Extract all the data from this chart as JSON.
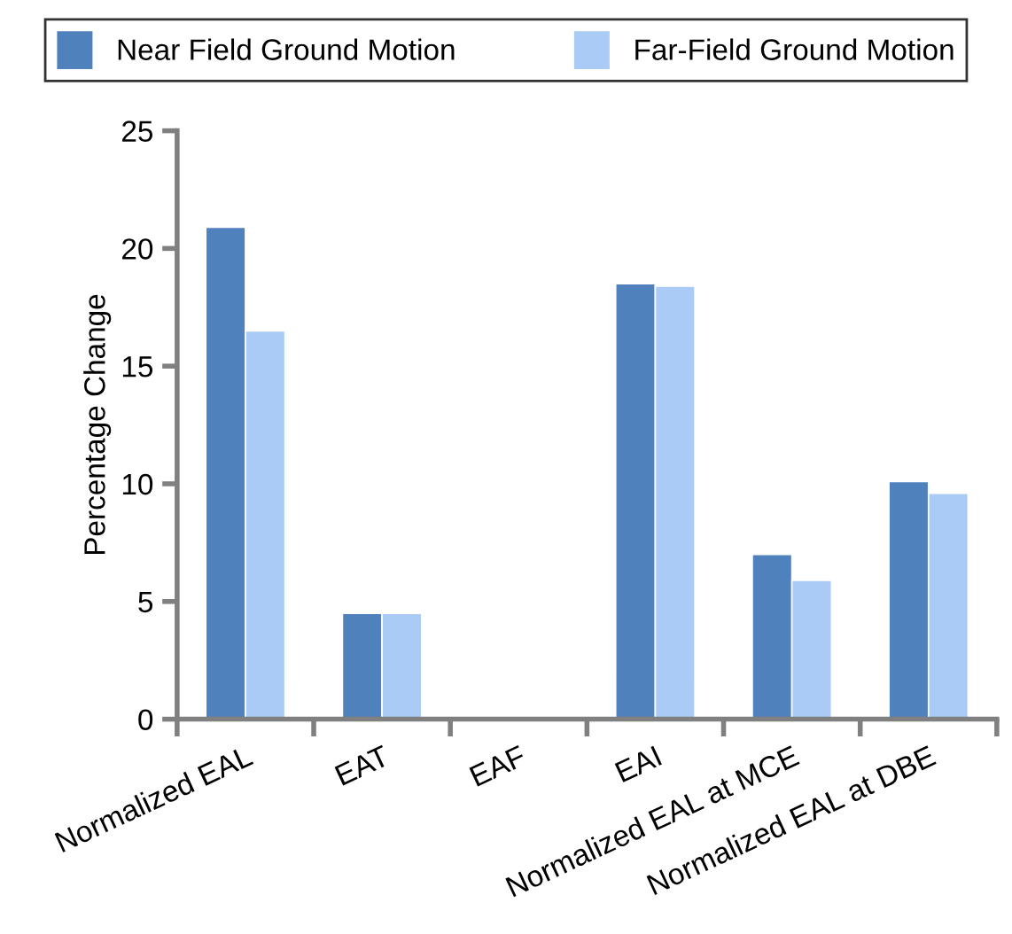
{
  "chart_data": {
    "type": "bar",
    "ylabel": "Percentage Change",
    "categories": [
      "Normalized EAL",
      "EAT",
      "EAF",
      "EAI",
      "Normalized EAL at MCE",
      "Normalized EAL at DBE"
    ],
    "series": [
      {
        "name": "Near Field Ground Motion",
        "color": "#4f81bd",
        "values": [
          20.9,
          4.5,
          null,
          18.5,
          7.0,
          10.1
        ]
      },
      {
        "name": "Far-Field Ground Motion",
        "color": "#a9cbf5",
        "values": [
          16.5,
          4.5,
          null,
          18.4,
          5.9,
          9.6
        ]
      }
    ],
    "ylim": [
      0,
      25
    ],
    "yticks": [
      0,
      5,
      10,
      15,
      20,
      25
    ],
    "grid": false,
    "legend": "top"
  }
}
